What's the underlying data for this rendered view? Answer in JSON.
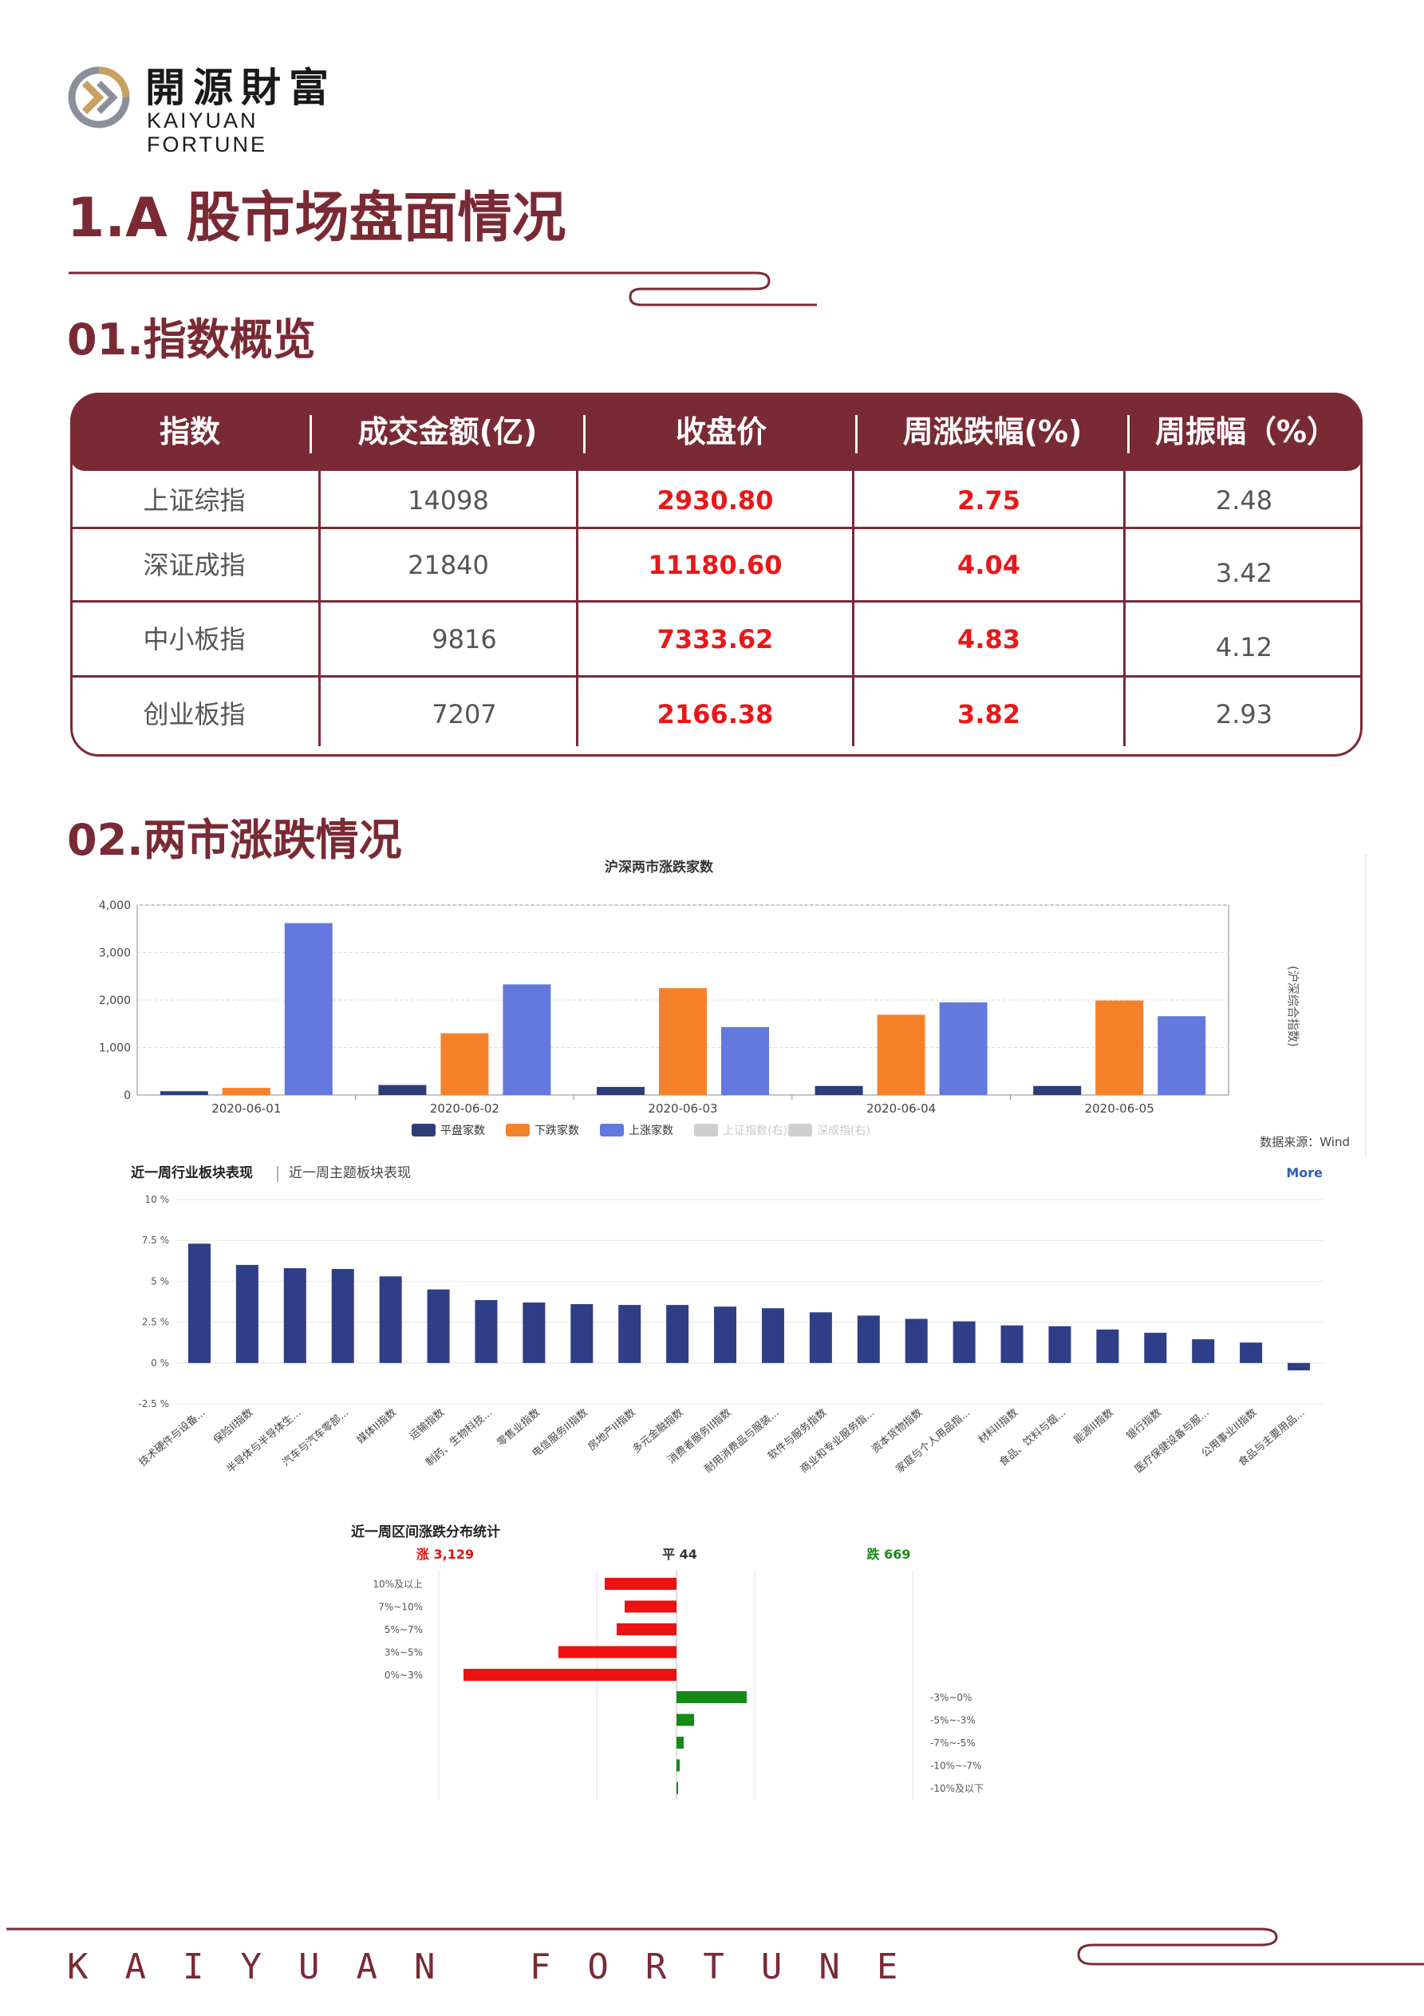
{
  "logo": {
    "cn": "開源財富",
    "en": "KAIYUAN FORTUNE",
    "icon": "kaiyuan-k-logo-icon"
  },
  "section_title": "1.A 股市场盘面情况",
  "subsection1": "01.指数概览",
  "table": {
    "headers": [
      "指数",
      "成交金额(亿)",
      "收盘价",
      "周涨跌幅(%)",
      "周振幅（%）"
    ],
    "rows": [
      [
        "上证综指",
        "14098",
        "2930.80",
        "2.75",
        "2.48"
      ],
      [
        "深证成指",
        "21840",
        "11180.60",
        "4.04",
        "3.42"
      ],
      [
        "中小板指",
        "9816",
        "7333.62",
        "4.83",
        "4.12"
      ],
      [
        "创业板指",
        "7207",
        "2166.38",
        "3.82",
        "2.93"
      ]
    ],
    "colors": {
      "header_bg": "#7a2a34",
      "highlight": "#e8181a"
    }
  },
  "subsection2": "02.两市涨跌情况",
  "chart_data": [
    {
      "type": "bar",
      "title": "沪深两市涨跌家数",
      "categories": [
        "2020-06-01",
        "2020-06-02",
        "2020-06-03",
        "2020-06-04",
        "2020-06-05"
      ],
      "series": [
        {
          "name": "平盘家数",
          "values": [
            80,
            210,
            170,
            190,
            190
          ],
          "color": "#2e3c78"
        },
        {
          "name": "下跌家数",
          "values": [
            150,
            1300,
            2250,
            1690,
            1990
          ],
          "color": "#f5822a"
        },
        {
          "name": "上涨家数",
          "values": [
            3620,
            2330,
            1430,
            1950,
            1660
          ],
          "color": "#6479dd"
        }
      ],
      "legend_extra": [
        "上证指数(右)",
        "深成指(右)"
      ],
      "y_ticks": [
        "0",
        "1,000",
        "2,000",
        "3,000",
        "4,000"
      ],
      "ylim": [
        0,
        4000
      ],
      "right_axis_label": "(沪深综合指数)",
      "source": "数据来源：Wind",
      "legend_position": "bottom"
    },
    {
      "type": "bar",
      "tabs": [
        "近一周行业板块表现",
        "近一周主题板块表现"
      ],
      "more": "More",
      "categories": [
        "技术硬件与设备...",
        "保险II指数",
        "半导体与半导体生...",
        "汽车与汽车零部...",
        "媒体II指数",
        "运输指数",
        "制药、生物科技...",
        "零售业指数",
        "电信服务II指数",
        "房地产II指数",
        "多元金融指数",
        "消费者服务II指数",
        "耐用消费品与服装...",
        "软件与服务指数",
        "商业和专业服务指...",
        "资本货物指数",
        "家庭与个人用品指...",
        "材料II指数",
        "食品、饮料与烟...",
        "能源II指数",
        "银行指数",
        "医疗保健设备与服...",
        "公用事业II指数",
        "食品与主要用品..."
      ],
      "values": [
        7.3,
        6.0,
        5.8,
        5.75,
        5.3,
        4.5,
        3.85,
        3.7,
        3.6,
        3.55,
        3.55,
        3.45,
        3.35,
        3.1,
        2.9,
        2.7,
        2.55,
        2.3,
        2.25,
        2.05,
        1.85,
        1.45,
        1.25,
        -0.45
      ],
      "y_ticks": [
        "10 %",
        "7.5 %",
        "5 %",
        "2.5 %",
        "0 %",
        "-2.5 %"
      ],
      "ylim": [
        -2.5,
        10
      ],
      "color": "#2e3e88"
    },
    {
      "type": "bar",
      "title": "近一周区间涨跌分布统计",
      "summary": {
        "up": "涨 3,129",
        "flat": "平 44",
        "down": "跌 669"
      },
      "up_categories": [
        "10%及以上",
        "7%~10%",
        "5%~7%",
        "3%~5%",
        "0%~3%"
      ],
      "up_values": [
        90,
        65,
        75,
        148,
        267
      ],
      "down_categories": [
        "-3%~0%",
        "-5%~-3%",
        "-7%~-5%",
        "-10%~-7%",
        "-10%及以下"
      ],
      "down_values": [
        88,
        22,
        9,
        4,
        2
      ],
      "up_color": "#ee1111",
      "down_color": "#168a16"
    }
  ],
  "footer": {
    "text": "KAIYUAN FORTUNE"
  }
}
